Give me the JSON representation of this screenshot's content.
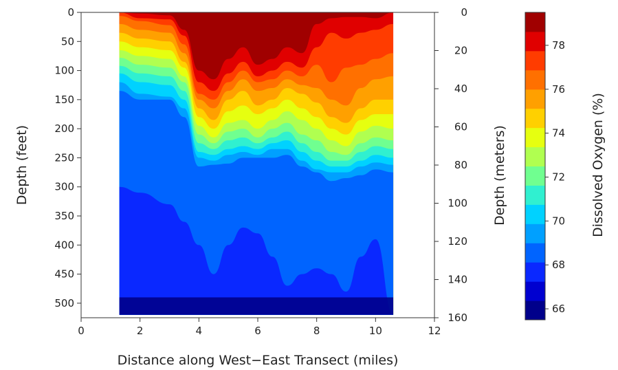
{
  "chart_data": {
    "type": "heatmap",
    "subtype": "filled-contour",
    "title": "",
    "xlabel": "Distance along West−East Transect (miles)",
    "ylabel_left": "Depth (feet)",
    "ylabel_right": "Depth (meters)",
    "colorbar_label": "Dissolved Oxygen (%)",
    "xlim": [
      0,
      12
    ],
    "ylim_feet": [
      525,
      0
    ],
    "ylim_meters": [
      160,
      0
    ],
    "x_ticks": [
      "0",
      "2",
      "4",
      "6",
      "8",
      "10",
      "12"
    ],
    "y_ticks_feet": [
      "0",
      "50",
      "100",
      "150",
      "200",
      "250",
      "300",
      "350",
      "400",
      "450",
      "500"
    ],
    "y_ticks_meters": [
      "0",
      "20",
      "40",
      "60",
      "80",
      "100",
      "120",
      "140",
      "160"
    ],
    "colorbar_range": [
      65.5,
      79.5
    ],
    "colorbar_ticks": [
      "66",
      "68",
      "70",
      "72",
      "74",
      "76",
      "78"
    ],
    "colormap": "jet",
    "palette": [
      "#00008b",
      "#0000d0",
      "#0a28ff",
      "#0064ff",
      "#00a0ff",
      "#00d2ff",
      "#30f0d0",
      "#70ff90",
      "#b0ff50",
      "#e6ff10",
      "#ffd000",
      "#ffa000",
      "#ff7000",
      "#ff3c00",
      "#e00000",
      "#a00000"
    ],
    "contour_levels": [
      66,
      67,
      68,
      69,
      70,
      71,
      72,
      73,
      74,
      75,
      76,
      77,
      78,
      79
    ],
    "data_extent_x": [
      1.3,
      10.6
    ],
    "data_extent_depth_feet": [
      0,
      520
    ],
    "transect_x": [
      1.3,
      2.0,
      3.0,
      3.5,
      4.0,
      4.5,
      5.0,
      5.5,
      6.0,
      6.5,
      7.0,
      7.5,
      8.0,
      8.5,
      9.0,
      9.5,
      10.0,
      10.6
    ],
    "isoline_depths_feet": [
      {
        "level": 78,
        "depths": [
          0,
          2,
          5,
          30,
          100,
          115,
          80,
          60,
          90,
          80,
          60,
          70,
          20,
          10,
          8,
          8,
          10,
          0
        ]
      },
      {
        "level": 77,
        "depths": [
          0,
          10,
          12,
          40,
          120,
          135,
          105,
          85,
          110,
          100,
          85,
          95,
          60,
          35,
          45,
          35,
          30,
          20
        ]
      },
      {
        "level": 76,
        "depths": [
          6,
          15,
          22,
          55,
          140,
          150,
          120,
          100,
          120,
          115,
          100,
          110,
          90,
          120,
          95,
          90,
          80,
          70
        ]
      },
      {
        "level": 75,
        "depths": [
          20,
          30,
          35,
          70,
          150,
          165,
          135,
          115,
          135,
          130,
          115,
          125,
          130,
          150,
          160,
          130,
          115,
          110
        ]
      },
      {
        "level": 74,
        "depths": [
          35,
          45,
          50,
          85,
          165,
          185,
          150,
          135,
          160,
          150,
          130,
          140,
          155,
          180,
          190,
          165,
          150,
          150
        ]
      },
      {
        "level": 73,
        "depths": [
          50,
          60,
          65,
          95,
          180,
          200,
          170,
          160,
          175,
          165,
          150,
          165,
          180,
          200,
          210,
          185,
          175,
          175
        ]
      },
      {
        "level": 72,
        "depths": [
          65,
          75,
          80,
          110,
          195,
          215,
          190,
          185,
          200,
          185,
          170,
          185,
          200,
          220,
          230,
          205,
          195,
          200
        ]
      },
      {
        "level": 71,
        "depths": [
          78,
          90,
          95,
          120,
          210,
          225,
          205,
          200,
          215,
          200,
          190,
          210,
          220,
          240,
          245,
          225,
          215,
          220
        ]
      },
      {
        "level": 70,
        "depths": [
          92,
          105,
          110,
          135,
          225,
          235,
          220,
          215,
          225,
          215,
          205,
          225,
          240,
          255,
          255,
          240,
          230,
          235
        ]
      },
      {
        "level": 69,
        "depths": [
          105,
          120,
          125,
          150,
          240,
          245,
          235,
          230,
          235,
          225,
          220,
          240,
          255,
          265,
          265,
          255,
          245,
          250
        ]
      },
      {
        "level": 68,
        "depths": [
          120,
          140,
          145,
          165,
          250,
          255,
          245,
          240,
          245,
          235,
          235,
          255,
          270,
          275,
          275,
          265,
          258,
          262
        ]
      },
      {
        "level": 67,
        "depths": [
          135,
          150,
          150,
          180,
          265,
          262,
          260,
          250,
          250,
          250,
          245,
          265,
          275,
          290,
          285,
          280,
          270,
          275
        ]
      },
      {
        "level": 66,
        "depths": [
          300,
          310,
          330,
          360,
          400,
          450,
          400,
          370,
          380,
          420,
          470,
          450,
          440,
          450,
          480,
          420,
          390,
          520
        ]
      }
    ]
  }
}
